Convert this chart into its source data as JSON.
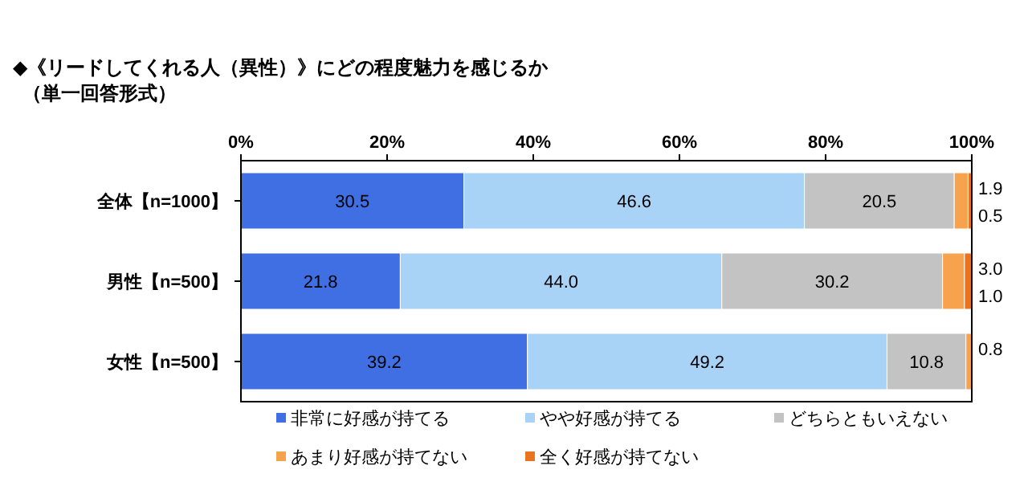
{
  "chart_data": {
    "type": "bar",
    "orientation": "horizontal",
    "stacked": true,
    "title": "◆《リードしてくれる人（異性）》にどの程度魅力を感じるか",
    "subtitle": "（単一回答形式）",
    "categories": [
      "全体【n=1000】",
      "男性【n=500】",
      "女性【n=500】"
    ],
    "series": [
      {
        "name": "非常に好感が持てる",
        "color": "#3f6fe3",
        "values": [
          30.5,
          21.8,
          39.2
        ],
        "value_labels": [
          "30.5",
          "21.8",
          "39.2"
        ]
      },
      {
        "name": "やや好感が持てる",
        "color": "#a9d2f7",
        "values": [
          46.6,
          44.0,
          49.2
        ],
        "value_labels": [
          "46.6",
          "44.0",
          "49.2"
        ]
      },
      {
        "name": "どちらともいえない",
        "color": "#c3c3c3",
        "values": [
          20.5,
          30.2,
          10.8
        ],
        "value_labels": [
          "20.5",
          "30.2",
          "10.8"
        ]
      },
      {
        "name": "あまり好感が持てない",
        "color": "#f7a34e",
        "values": [
          1.9,
          3.0,
          0.8
        ],
        "value_labels": [
          "1.9",
          "3.0",
          "0.8"
        ]
      },
      {
        "name": "全く好感が持てない",
        "color": "#e8741f",
        "values": [
          0.5,
          1.0,
          null
        ],
        "value_labels": [
          "0.5",
          "1.0",
          null
        ]
      }
    ],
    "xlim": [
      0,
      100
    ],
    "xticks": [
      {
        "value": 0,
        "label": "0%"
      },
      {
        "value": 20,
        "label": "20%"
      },
      {
        "value": 40,
        "label": "40%"
      },
      {
        "value": 60,
        "label": "60%"
      },
      {
        "value": 80,
        "label": "80%"
      },
      {
        "value": 100,
        "label": "100%"
      }
    ],
    "legend": "bottom"
  }
}
